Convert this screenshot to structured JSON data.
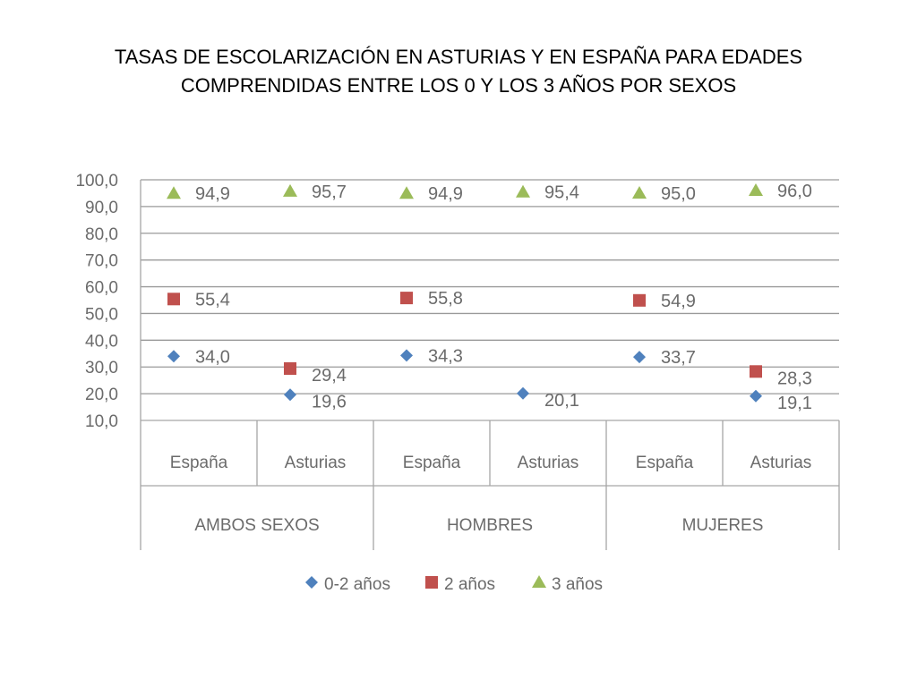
{
  "slide": {
    "title_line1": "TASAS DE ESCOLARIZACIÓN EN ASTURIAS Y EN ESPAÑA PARA EDADES",
    "title_line2": "COMPRENDIDAS ENTRE LOS 0 Y LOS 3 AÑOS POR SEXOS"
  },
  "chart_data": {
    "type": "scatter",
    "title": "",
    "xlabel": "",
    "ylabel": "",
    "ylim": [
      10,
      100
    ],
    "ytick_step": 10,
    "ytick_labels": [
      "10,0",
      "20,0",
      "30,0",
      "40,0",
      "50,0",
      "60,0",
      "70,0",
      "80,0",
      "90,0",
      "100,0"
    ],
    "grid": true,
    "legend_position": "bottom",
    "categories": [
      "España",
      "Asturias",
      "España",
      "Asturias",
      "España",
      "Asturias"
    ],
    "groups": [
      "AMBOS SEXOS",
      "HOMBRES",
      "MUJERES"
    ],
    "series": [
      {
        "name": "0-2 años",
        "marker": "diamond",
        "color": "#4f81bd",
        "values": [
          34.0,
          19.6,
          34.3,
          20.1,
          33.7,
          19.1
        ],
        "labels": [
          "34,0",
          "19,6",
          "34,3",
          "20,1",
          "33,7",
          "19,1"
        ]
      },
      {
        "name": "2 años",
        "marker": "square",
        "color": "#c0504d",
        "values": [
          55.4,
          29.4,
          55.8,
          null,
          54.9,
          28.3
        ],
        "labels": [
          "55,4",
          "29,4",
          "55,8",
          "",
          "54,9",
          "28,3"
        ]
      },
      {
        "name": "3 años",
        "marker": "triangle",
        "color": "#9bbb59",
        "values": [
          94.9,
          95.7,
          94.9,
          95.4,
          95.0,
          96.0
        ],
        "labels": [
          "94,9",
          "95,7",
          "94,9",
          "95,4",
          "95,0",
          "96,0"
        ]
      }
    ]
  }
}
